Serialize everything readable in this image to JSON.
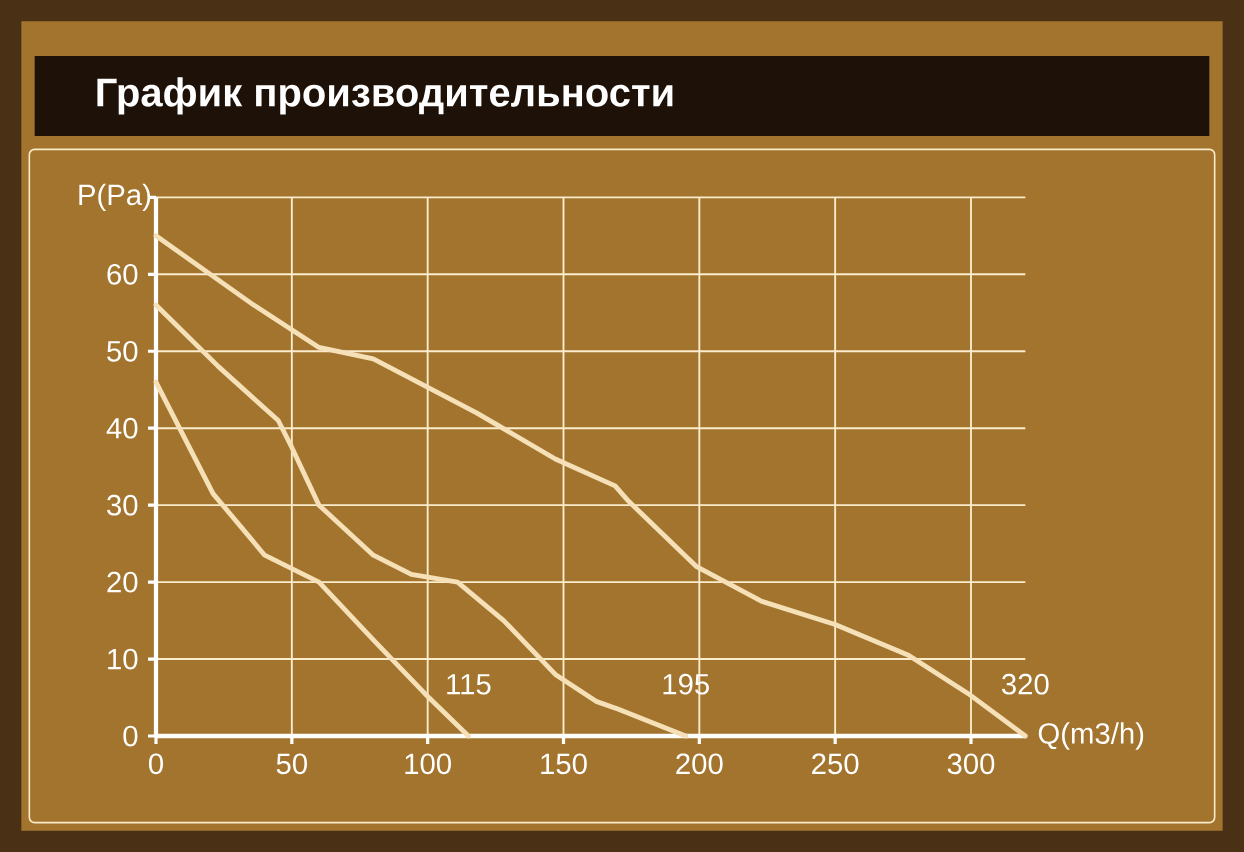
{
  "chart_data": {
    "type": "line",
    "title": "График производительности",
    "xlabel": "Q(m3/h)",
    "ylabel": "P(Pa)",
    "xlim": [
      0,
      320
    ],
    "ylim": [
      0,
      70
    ],
    "xticks": [
      0,
      50,
      100,
      150,
      200,
      250,
      300
    ],
    "yticks": [
      0,
      10,
      20,
      30,
      40,
      50,
      60,
      {
        "value": 70,
        "label": null
      }
    ],
    "grid": true,
    "marker": "none",
    "line_style": "solid",
    "series": [
      {
        "color": "#f5e0b8",
        "x": [
          0,
          21,
          40,
          60,
          80,
          99,
          115
        ],
        "values": [
          46,
          31.5,
          23.5,
          20,
          12.5,
          5.5,
          0
        ]
      },
      {
        "color": "#f5e0b8",
        "x": [
          0,
          23,
          45,
          50,
          60,
          80,
          94,
          111,
          128,
          147,
          162,
          170,
          195
        ],
        "values": [
          56,
          48,
          41,
          37.5,
          30,
          23.5,
          21,
          20,
          15,
          8,
          4.5,
          3.5,
          0
        ]
      },
      {
        "color": "#f5e0b8",
        "x": [
          0,
          36,
          60,
          80,
          99,
          118,
          147,
          169,
          174,
          199,
          223,
          250,
          277,
          299,
          320
        ],
        "values": [
          65,
          56,
          50.5,
          49,
          45.5,
          42,
          36,
          32.5,
          30.5,
          22,
          17.5,
          14.5,
          10.5,
          5.5,
          0
        ]
      }
    ],
    "annotations": [
      {
        "text": "115",
        "x": 115,
        "y": 0
      },
      {
        "text": "195",
        "x": 195,
        "y": 0
      },
      {
        "text": "320",
        "x": 320,
        "y": 0
      }
    ]
  }
}
